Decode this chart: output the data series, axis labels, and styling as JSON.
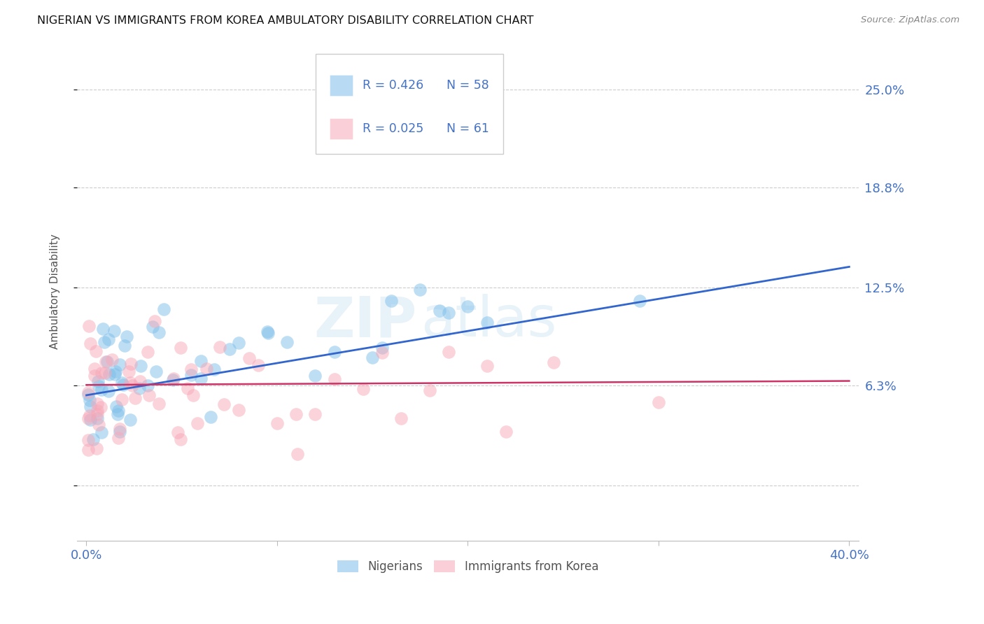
{
  "title": "NIGERIAN VS IMMIGRANTS FROM KOREA AMBULATORY DISABILITY CORRELATION CHART",
  "source": "Source: ZipAtlas.com",
  "ylabel": "Ambulatory Disability",
  "x_min": 0.0,
  "x_max": 0.4,
  "y_min": -0.035,
  "y_max": 0.28,
  "ytick_vals": [
    0.0,
    0.063,
    0.125,
    0.188,
    0.25
  ],
  "ytick_labels": [
    "",
    "6.3%",
    "12.5%",
    "18.8%",
    "25.0%"
  ],
  "xtick_vals": [
    0.0,
    0.1,
    0.2,
    0.3,
    0.4
  ],
  "xtick_labels": [
    "0.0%",
    "",
    "",
    "",
    "40.0%"
  ],
  "blue_color": "#7fbfea",
  "blue_line_color": "#3366cc",
  "pink_color": "#f7a8b8",
  "pink_line_color": "#cc3366",
  "watermark_zip": "ZIP",
  "watermark_atlas": "atlas",
  "blue_line_x0": 0.0,
  "blue_line_y0": 0.057,
  "blue_line_x1": 0.4,
  "blue_line_y1": 0.138,
  "pink_line_x0": 0.0,
  "pink_line_y0": 0.0635,
  "pink_line_x1": 0.4,
  "pink_line_y1": 0.066,
  "legend_r1": "R = 0.426",
  "legend_n1": "N = 58",
  "legend_r2": "R = 0.025",
  "legend_n2": "N = 61"
}
